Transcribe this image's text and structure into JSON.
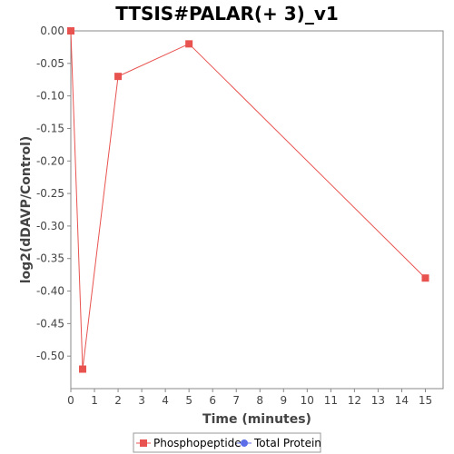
{
  "chart_data": {
    "type": "line",
    "title": "TTSIS#PALAR(+ 3)_v1",
    "xlabel": "Time (minutes)",
    "ylabel": "log2(dDAVP/Control)",
    "xlim": [
      0,
      15.75
    ],
    "ylim": [
      -0.55,
      0.0
    ],
    "xticks": [
      0,
      1,
      2,
      3,
      4,
      5,
      6,
      7,
      8,
      9,
      10,
      11,
      12,
      13,
      14,
      15
    ],
    "yticks": [
      0.0,
      -0.05,
      -0.1,
      -0.15,
      -0.2,
      -0.25,
      -0.3,
      -0.35,
      -0.4,
      -0.45,
      -0.5
    ],
    "ytick_labels": [
      "0.00",
      "-0.05",
      "-0.10",
      "-0.15",
      "-0.20",
      "-0.25",
      "-0.30",
      "-0.35",
      "-0.40",
      "-0.45",
      "-0.50"
    ],
    "grid": false,
    "legend_position": "bottom",
    "series": [
      {
        "name": "Phosphopeptide",
        "color": "#e8534f",
        "marker": "square",
        "x": [
          0,
          0.5,
          2,
          5,
          15
        ],
        "y": [
          0.0,
          -0.52,
          -0.07,
          -0.02,
          -0.38
        ]
      },
      {
        "name": "Total Protein",
        "color": "#5b6ee8",
        "marker": "circle",
        "x": [],
        "y": []
      }
    ]
  }
}
